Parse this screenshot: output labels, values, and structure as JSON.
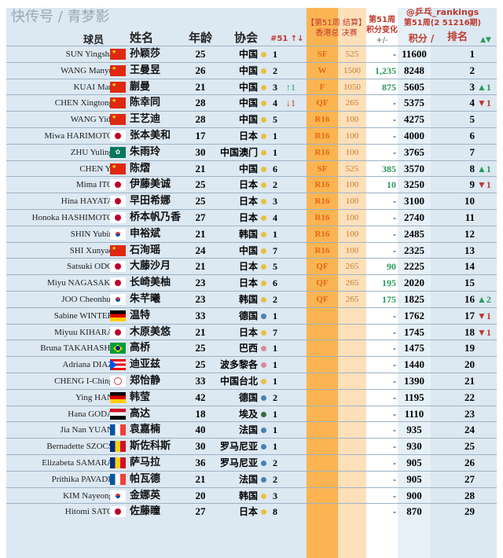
{
  "header": {
    "player": "球员",
    "name": "姓名",
    "age": "年龄",
    "assoc": "协会",
    "assoc_rank": "#51 ↑↓",
    "event_line1": "【第51周 结算】",
    "event_line2": "香港总 决赛",
    "change_line1": "第51周",
    "change_line2": "积分变化",
    "change_line3": "+/-",
    "source_line1": "@乒乓_rankings",
    "source_line2": "第51周(2 51216期)",
    "points": "积分 /",
    "rank": "排名",
    "move": "▲▼"
  },
  "colors": {
    "stage_bg": "#fbb451",
    "points_bg": "#fde0b9",
    "row_bg": "#dce8f2",
    "up": "#2a9a5a",
    "down": "#c0392b"
  },
  "rows": [
    {
      "en": "SUN Yingsha",
      "flag": "cn",
      "cn": "孙颖莎",
      "age": "25",
      "assoc": "中国",
      "region": "asia",
      "arank": "1",
      "amove": "",
      "stage": "SF",
      "pts": "525",
      "chg": "-",
      "score": "11600",
      "rank": "1",
      "move": ""
    },
    {
      "en": "WANG Manyu",
      "flag": "cn",
      "cn": "王曼昱",
      "age": "26",
      "assoc": "中国",
      "region": "asia",
      "arank": "2",
      "amove": "",
      "stage": "W",
      "pts": "1500",
      "chg": "1,235",
      "score": "8248",
      "rank": "2",
      "move": ""
    },
    {
      "en": "KUAI Man",
      "flag": "cn",
      "cn": "蒯曼",
      "age": "21",
      "assoc": "中国",
      "region": "asia",
      "arank": "3",
      "amove": "↑1",
      "stage": "F",
      "pts": "1050",
      "chg": "875",
      "score": "5605",
      "rank": "3",
      "move": "▲1"
    },
    {
      "en": "CHEN Xingtong",
      "flag": "cn",
      "cn": "陈幸同",
      "age": "28",
      "assoc": "中国",
      "region": "asia",
      "arank": "4",
      "amove": "↓1",
      "stage": "QF",
      "pts": "265",
      "chg": "-",
      "score": "5375",
      "rank": "4",
      "move": "▼1"
    },
    {
      "en": "WANG Yidi",
      "flag": "cn",
      "cn": "王艺迪",
      "age": "28",
      "assoc": "中国",
      "region": "asia",
      "arank": "5",
      "amove": "",
      "stage": "R16",
      "pts": "100",
      "chg": "-",
      "score": "4275",
      "rank": "5",
      "move": ""
    },
    {
      "en": "Miwa HARIMOTO",
      "flag": "jp",
      "cn": "张本美和",
      "age": "17",
      "assoc": "日本",
      "region": "asia",
      "arank": "1",
      "amove": "",
      "stage": "R16",
      "pts": "100",
      "chg": "-",
      "score": "4000",
      "rank": "6",
      "move": ""
    },
    {
      "en": "ZHU Yuling",
      "flag": "mo",
      "cn": "朱雨玲",
      "age": "30",
      "assoc": "中国澳门",
      "region": "asia",
      "arank": "1",
      "amove": "",
      "stage": "R16",
      "pts": "100",
      "chg": "-",
      "score": "3765",
      "rank": "7",
      "move": ""
    },
    {
      "en": "CHEN Yi",
      "flag": "cn",
      "cn": "陈熠",
      "age": "21",
      "assoc": "中国",
      "region": "asia",
      "arank": "6",
      "amove": "",
      "stage": "SF",
      "pts": "525",
      "chg": "385",
      "score": "3570",
      "rank": "8",
      "move": "▲1"
    },
    {
      "en": "Mima ITO",
      "flag": "jp",
      "cn": "伊藤美诚",
      "age": "25",
      "assoc": "日本",
      "region": "asia",
      "arank": "2",
      "amove": "",
      "stage": "R16",
      "pts": "100",
      "chg": "10",
      "score": "3250",
      "rank": "9",
      "move": "▼1"
    },
    {
      "en": "Hina HAYATA",
      "flag": "jp",
      "cn": "早田希娜",
      "age": "25",
      "assoc": "日本",
      "region": "asia",
      "arank": "3",
      "amove": "",
      "stage": "R16",
      "pts": "100",
      "chg": "-",
      "score": "3100",
      "rank": "10",
      "move": ""
    },
    {
      "en": "Honoka HASHIMOTO",
      "flag": "jp",
      "cn": "桥本帆乃香",
      "age": "27",
      "assoc": "日本",
      "region": "asia",
      "arank": "4",
      "amove": "",
      "stage": "R16",
      "pts": "100",
      "chg": "-",
      "score": "2740",
      "rank": "11",
      "move": ""
    },
    {
      "en": "SHIN Yubin",
      "flag": "kr",
      "cn": "申裕斌",
      "age": "21",
      "assoc": "韩国",
      "region": "asia",
      "arank": "1",
      "amove": "",
      "stage": "R16",
      "pts": "100",
      "chg": "-",
      "score": "2485",
      "rank": "12",
      "move": ""
    },
    {
      "en": "SHI Xunyao",
      "flag": "cn",
      "cn": "石洵瑶",
      "age": "24",
      "assoc": "中国",
      "region": "asia",
      "arank": "7",
      "amove": "",
      "stage": "R16",
      "pts": "100",
      "chg": "-",
      "score": "2325",
      "rank": "13",
      "move": ""
    },
    {
      "en": "Satsuki ODO",
      "flag": "jp",
      "cn": "大藤沙月",
      "age": "21",
      "assoc": "日本",
      "region": "asia",
      "arank": "5",
      "amove": "",
      "stage": "QF",
      "pts": "265",
      "chg": "90",
      "score": "2225",
      "rank": "14",
      "move": ""
    },
    {
      "en": "Miyu NAGASAKI",
      "flag": "jp",
      "cn": "长崎美柚",
      "age": "23",
      "assoc": "日本",
      "region": "asia",
      "arank": "6",
      "amove": "",
      "stage": "QF",
      "pts": "265",
      "chg": "195",
      "score": "2020",
      "rank": "15",
      "move": ""
    },
    {
      "en": "JOO Cheonhui",
      "flag": "kr",
      "cn": "朱芊曦",
      "age": "23",
      "assoc": "韩国",
      "region": "asia",
      "arank": "2",
      "amove": "",
      "stage": "QF",
      "pts": "265",
      "chg": "175",
      "score": "1825",
      "rank": "16",
      "move": "▲2"
    },
    {
      "en": "Sabine WINTER",
      "flag": "de",
      "cn": "温特",
      "age": "33",
      "assoc": "德国",
      "region": "europe",
      "arank": "1",
      "amove": "",
      "stage": "",
      "pts": "",
      "chg": "-",
      "score": "1762",
      "rank": "17",
      "move": "▼1"
    },
    {
      "en": "Miyuu KIHARA",
      "flag": "jp",
      "cn": "木原美悠",
      "age": "21",
      "assoc": "日本",
      "region": "asia",
      "arank": "7",
      "amove": "",
      "stage": "",
      "pts": "",
      "chg": "-",
      "score": "1745",
      "rank": "18",
      "move": "▼1"
    },
    {
      "en": "Bruna TAKAHASHI",
      "flag": "br",
      "cn": "高桥",
      "age": "25",
      "assoc": "巴西",
      "region": "americas",
      "arank": "1",
      "amove": "",
      "stage": "",
      "pts": "",
      "chg": "-",
      "score": "1475",
      "rank": "19",
      "move": ""
    },
    {
      "en": "Adriana DIAZ",
      "flag": "pr",
      "cn": "迪亚兹",
      "age": "25",
      "assoc": "波多黎各",
      "region": "americas",
      "arank": "1",
      "amove": "",
      "stage": "",
      "pts": "",
      "chg": "-",
      "score": "1440",
      "rank": "20",
      "move": ""
    },
    {
      "en": "CHENG I-Ching",
      "flag": "tpe",
      "cn": "郑怡静",
      "age": "33",
      "assoc": "中国台北",
      "region": "asia",
      "arank": "1",
      "amove": "",
      "stage": "",
      "pts": "",
      "chg": "-",
      "score": "1390",
      "rank": "21",
      "move": ""
    },
    {
      "en": "Ying HAN",
      "flag": "de",
      "cn": "韩莹",
      "age": "42",
      "assoc": "德国",
      "region": "europe",
      "arank": "2",
      "amove": "",
      "stage": "",
      "pts": "",
      "chg": "-",
      "score": "1195",
      "rank": "22",
      "move": ""
    },
    {
      "en": "Hana GODA",
      "flag": "eg",
      "cn": "高达",
      "age": "18",
      "assoc": "埃及",
      "region": "africa",
      "arank": "1",
      "amove": "",
      "stage": "",
      "pts": "",
      "chg": "-",
      "score": "1110",
      "rank": "23",
      "move": ""
    },
    {
      "en": "Jia Nan YUAN",
      "flag": "fr",
      "cn": "袁嘉楠",
      "age": "40",
      "assoc": "法国",
      "region": "europe",
      "arank": "1",
      "amove": "",
      "stage": "",
      "pts": "",
      "chg": "-",
      "score": "935",
      "rank": "24",
      "move": ""
    },
    {
      "en": "Bernadette SZOCS",
      "flag": "ro",
      "cn": "斯佐科斯",
      "age": "30",
      "assoc": "罗马尼亚",
      "region": "europe",
      "arank": "1",
      "amove": "",
      "stage": "",
      "pts": "",
      "chg": "-",
      "score": "930",
      "rank": "25",
      "move": ""
    },
    {
      "en": "Elizabeta SAMARA",
      "flag": "ro",
      "cn": "萨马拉",
      "age": "36",
      "assoc": "罗马尼亚",
      "region": "europe",
      "arank": "2",
      "amove": "",
      "stage": "",
      "pts": "",
      "chg": "-",
      "score": "905",
      "rank": "26",
      "move": ""
    },
    {
      "en": "Prithika PAVADE",
      "flag": "fr",
      "cn": "帕瓦德",
      "age": "21",
      "assoc": "法国",
      "region": "europe",
      "arank": "2",
      "amove": "",
      "stage": "",
      "pts": "",
      "chg": "-",
      "score": "905",
      "rank": "27",
      "move": ""
    },
    {
      "en": "KIM Nayeong",
      "flag": "kr",
      "cn": "金娜英",
      "age": "20",
      "assoc": "韩国",
      "region": "asia",
      "arank": "3",
      "amove": "",
      "stage": "",
      "pts": "",
      "chg": "-",
      "score": "900",
      "rank": "28",
      "move": ""
    },
    {
      "en": "Hitomi SATO",
      "flag": "jp",
      "cn": "佐藤瞳",
      "age": "27",
      "assoc": "日本",
      "region": "asia",
      "arank": "8",
      "amove": "",
      "stage": "",
      "pts": "",
      "chg": "-",
      "score": "870",
      "rank": "29",
      "move": ""
    }
  ],
  "watermark": "快传号 / 青梦影"
}
